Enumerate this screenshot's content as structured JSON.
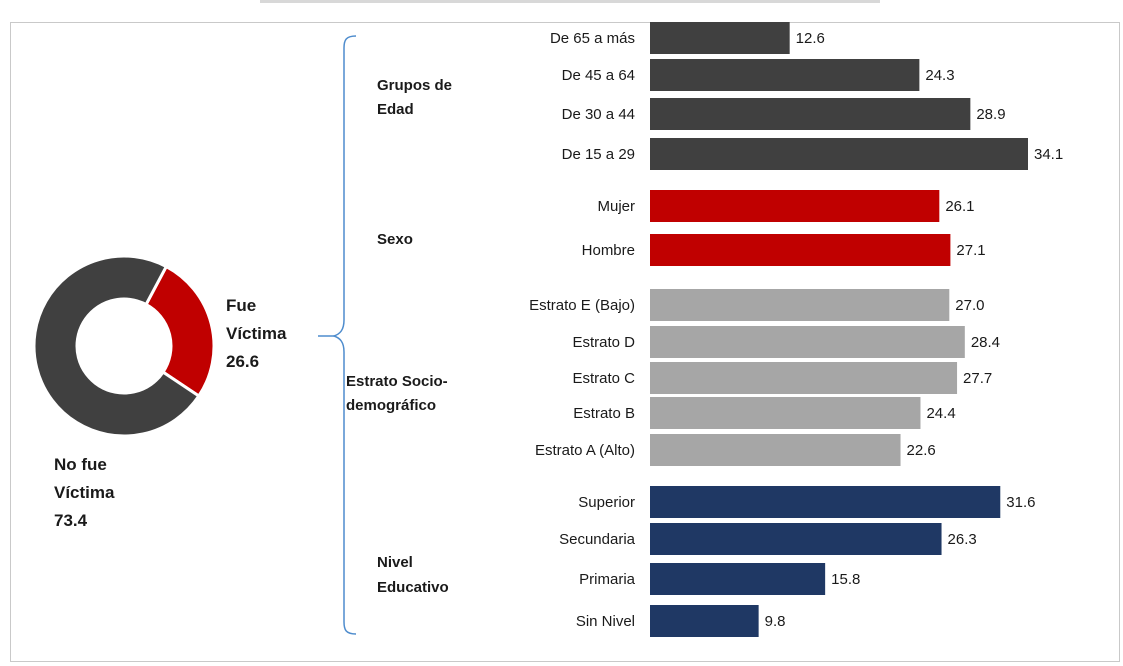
{
  "donut": {
    "labels": {
      "fue_line1": "Fue",
      "fue_line2": "Víctima",
      "fue_value": "26.6",
      "nofue_line1": "No fue",
      "nofue_line2": "Víctima",
      "nofue_value": "73.4"
    }
  },
  "groups": [
    {
      "line1": "Grupos de",
      "line2": "Edad"
    },
    {
      "line1": "Sexo",
      "line2": ""
    },
    {
      "line1": "Estrato Socio-",
      "line2": "demográfico"
    },
    {
      "line1": "Nivel",
      "line2": "Educativo"
    }
  ],
  "colors": {
    "victim_red": "#c00000",
    "no_victim_dark": "#404040",
    "edad": "#404040",
    "sexo": "#c00000",
    "estrato": "#a6a6a6",
    "educativo": "#1f3864",
    "brace": "#4e8ccd"
  },
  "chart_data": [
    {
      "type": "pie",
      "style": "donut",
      "categories": [
        "Fue Víctima",
        "No fue Víctima"
      ],
      "values": [
        26.6,
        73.4
      ]
    },
    {
      "type": "bar",
      "orientation": "horizontal",
      "groups": [
        "Grupos de Edad",
        "Sexo",
        "Estrato Socio-demográfico",
        "Nivel Educativo"
      ],
      "categories": [
        "De 65 a más",
        "De 45 a 64",
        "De 30 a 44",
        "De 15 a 29",
        "Mujer",
        "Hombre",
        "Estrato E (Bajo)",
        "Estrato D",
        "Estrato C",
        "Estrato B",
        "Estrato A (Alto)",
        "Superior",
        "Secundaria",
        "Primaria",
        "Sin Nivel"
      ],
      "values": [
        12.6,
        24.3,
        28.9,
        34.1,
        26.1,
        27.1,
        27.0,
        28.4,
        27.7,
        24.4,
        22.6,
        31.6,
        26.3,
        15.8,
        9.8
      ],
      "value_labels": [
        "12.6",
        "24.3",
        "28.9",
        "34.1",
        "26.1",
        "27.1",
        "27.0",
        "28.4",
        "27.7",
        "24.4",
        "22.6",
        "31.6",
        "26.3",
        "15.8",
        "9.8"
      ],
      "bar_groups": [
        "edad",
        "edad",
        "edad",
        "edad",
        "sexo",
        "sexo",
        "estrato",
        "estrato",
        "estrato",
        "estrato",
        "estrato",
        "educativo",
        "educativo",
        "educativo",
        "educativo"
      ],
      "xlim": [
        0,
        34.1
      ],
      "grid": false,
      "legend": "none"
    }
  ]
}
